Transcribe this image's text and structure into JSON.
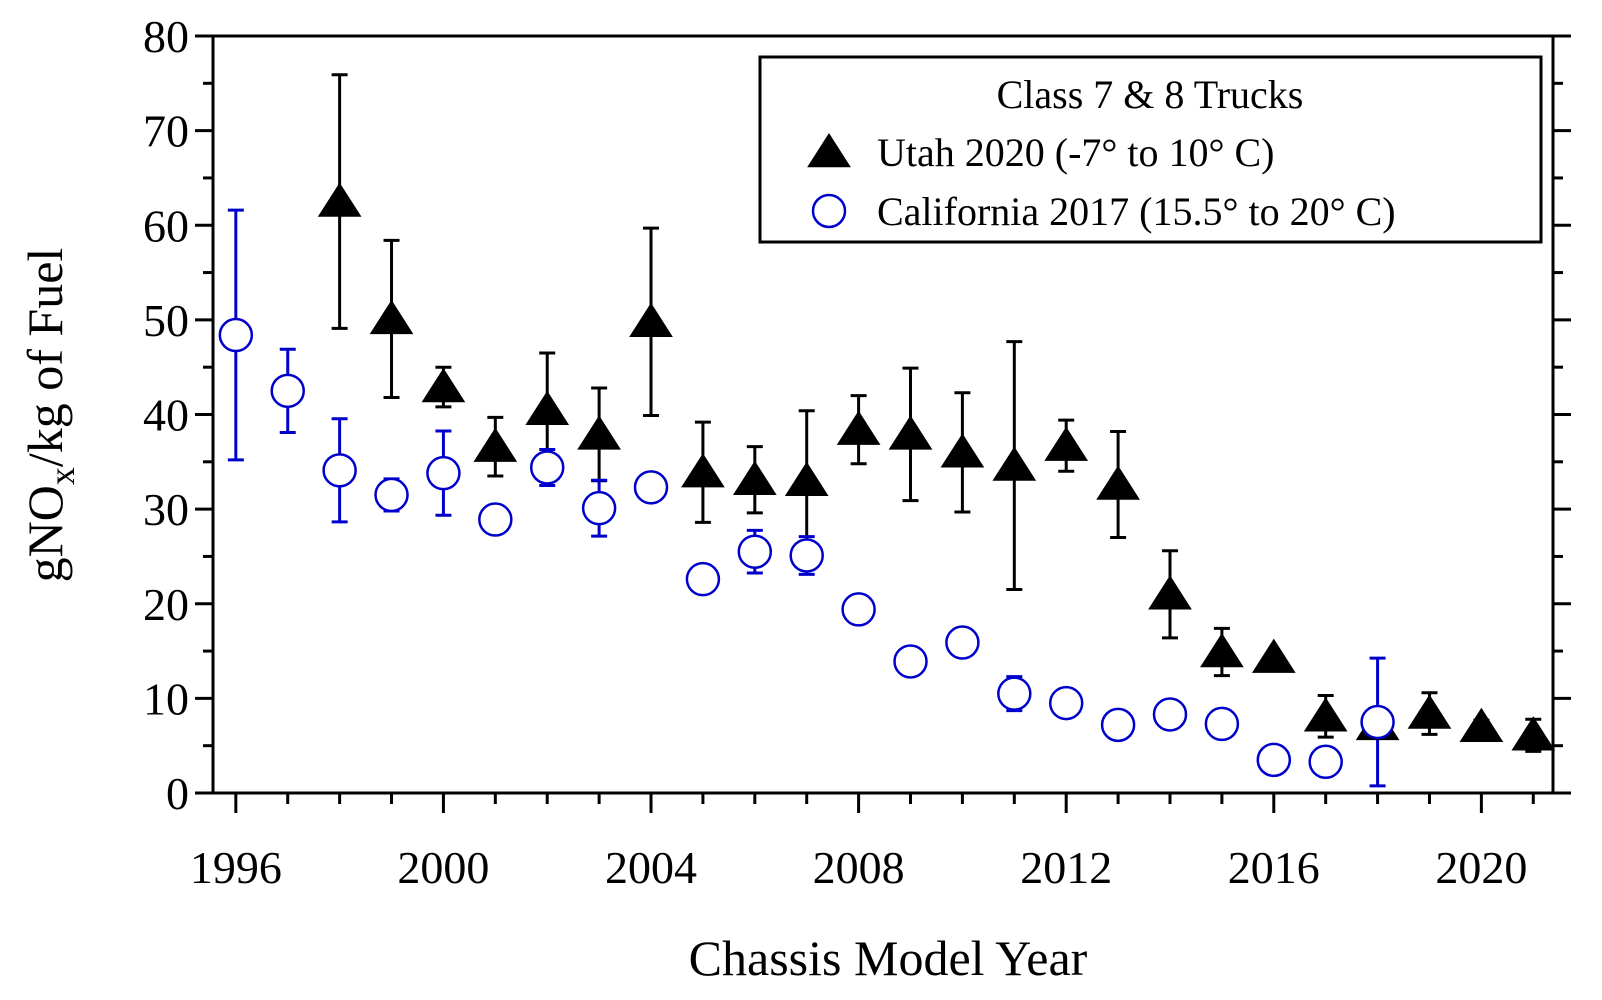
{
  "chart_data": {
    "type": "scatter",
    "xlabel": "Chassis Model Year",
    "ylabel": {
      "main": "gNO",
      "sub": "x",
      "rest": "/kg of Fuel"
    },
    "legend_title": "Class 7 & 8 Trucks",
    "legend": "upper right",
    "xlim": [
      1995.56,
      2021.38
    ],
    "ylim": [
      0,
      80
    ],
    "xticks": [
      1996,
      2000,
      2004,
      2008,
      2012,
      2016,
      2020
    ],
    "xminor_ticks": [
      1997,
      1998,
      1999,
      2001,
      2002,
      2003,
      2005,
      2006,
      2007,
      2009,
      2010,
      2011,
      2013,
      2014,
      2015,
      2017,
      2018,
      2019,
      2021
    ],
    "yticks": [
      0,
      10,
      20,
      30,
      40,
      50,
      60,
      70,
      80
    ],
    "yminor_ticks": [
      5,
      15,
      25,
      35,
      45,
      55,
      65,
      75
    ],
    "x": [
      1996,
      1997,
      1998,
      1999,
      2000,
      2001,
      2002,
      2003,
      2004,
      2005,
      2006,
      2007,
      2008,
      2009,
      2010,
      2011,
      2012,
      2013,
      2014,
      2015,
      2016,
      2017,
      2018,
      2019,
      2020,
      2021
    ],
    "series": [
      {
        "name": "Utah 2020 (-7° to 10° C)",
        "color": "#000000",
        "marker": "triangle",
        "values": [
          null,
          null,
          62.5,
          50.1,
          42.9,
          36.6,
          40.5,
          37.9,
          49.8,
          33.9,
          33.1,
          33.0,
          38.4,
          37.9,
          36.0,
          34.6,
          36.7,
          32.6,
          21.0,
          14.9,
          14.3,
          8.1,
          7.2,
          8.4,
          7.0,
          6.1
        ],
        "errors": [
          null,
          null,
          13.4,
          8.3,
          2.1,
          3.1,
          6.0,
          4.9,
          9.9,
          5.3,
          3.5,
          7.4,
          3.6,
          7.0,
          6.3,
          13.1,
          2.7,
          5.6,
          4.6,
          2.5,
          0.5,
          2.2,
          0.5,
          2.2,
          0.7,
          1.7
        ]
      },
      {
        "name": "California 2017 (15.5° to 20° C)",
        "color": "#0000cc",
        "marker": "circle",
        "values": [
          48.4,
          42.5,
          34.1,
          31.5,
          33.8,
          28.9,
          34.4,
          30.1,
          32.3,
          22.6,
          25.5,
          25.1,
          19.4,
          13.9,
          15.9,
          10.5,
          9.5,
          7.2,
          8.3,
          7.3,
          3.5,
          3.3,
          7.5,
          null,
          null,
          null
        ],
        "errors": [
          13.2,
          4.4,
          5.45,
          1.7,
          4.45,
          null,
          1.9,
          2.95,
          null,
          null,
          2.25,
          2.0,
          null,
          null,
          null,
          1.8,
          null,
          null,
          null,
          null,
          null,
          null,
          6.75,
          null,
          null,
          null
        ]
      }
    ]
  }
}
